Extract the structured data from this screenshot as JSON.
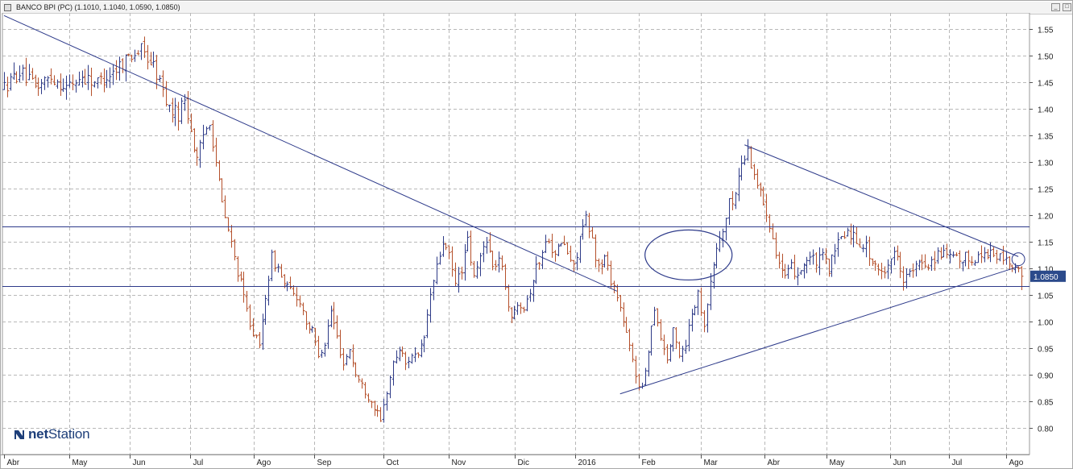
{
  "window": {
    "title": "BANCO BPI (PC) (1.1010, 1.1040, 1.0590, 1.0850)",
    "minimize_label": "_",
    "maximize_label": "□"
  },
  "logo": {
    "text_bold": "net",
    "text_rest": "Station"
  },
  "colors": {
    "up": "#2d3a87",
    "down": "#b5502b",
    "trendline": "#2d3a8a",
    "grid": "#b8b8b8",
    "price_box": "#2b4a8b"
  },
  "chart_data": {
    "type": "ohlc",
    "title": "BANCO BPI (PC)",
    "last": {
      "open": 1.101,
      "high": 1.104,
      "low": 1.059,
      "close": 1.085
    },
    "last_label": "1.0850",
    "ylim": [
      0.75,
      1.58
    ],
    "yticks": [
      "0.80",
      "0.85",
      "0.90",
      "0.95",
      "1.00",
      "1.05",
      "1.10",
      "1.15",
      "1.20",
      "1.25",
      "1.30",
      "1.35",
      "1.40",
      "1.45",
      "1.50",
      "1.55"
    ],
    "xticks": [
      "Abr",
      "May",
      "Jun",
      "Jul",
      "Ago",
      "Sep",
      "Oct",
      "Nov",
      "Dic",
      "2016",
      "Feb",
      "Mar",
      "Abr",
      "May",
      "Jun",
      "Jul",
      "Ago"
    ],
    "grid": true,
    "price_path": [
      [
        0,
        1.44
      ],
      [
        5,
        1.47
      ],
      [
        10,
        1.44
      ],
      [
        15,
        1.46
      ],
      [
        20,
        1.44
      ],
      [
        25,
        1.46
      ],
      [
        30,
        1.45
      ],
      [
        35,
        1.47
      ],
      [
        40,
        1.5
      ],
      [
        44,
        1.51
      ],
      [
        48,
        1.48
      ],
      [
        50,
        1.45
      ],
      [
        53,
        1.4
      ],
      [
        56,
        1.39
      ],
      [
        58,
        1.42
      ],
      [
        60,
        1.36
      ],
      [
        62,
        1.3
      ],
      [
        64,
        1.35
      ],
      [
        66,
        1.38
      ],
      [
        68,
        1.3
      ],
      [
        70,
        1.22
      ],
      [
        72,
        1.17
      ],
      [
        74,
        1.12
      ],
      [
        76,
        1.07
      ],
      [
        78,
        1.02
      ],
      [
        80,
        0.98
      ],
      [
        82,
        0.95
      ],
      [
        84,
        1.05
      ],
      [
        86,
        1.12
      ],
      [
        88,
        1.1
      ],
      [
        90,
        1.07
      ],
      [
        93,
        1.05
      ],
      [
        95,
        1.04
      ],
      [
        97,
        1.0
      ],
      [
        99,
        0.98
      ],
      [
        101,
        0.94
      ],
      [
        103,
        0.96
      ],
      [
        105,
        1.02
      ],
      [
        107,
        0.97
      ],
      [
        109,
        0.92
      ],
      [
        111,
        0.95
      ],
      [
        113,
        0.9
      ],
      [
        115,
        0.88
      ],
      [
        117,
        0.86
      ],
      [
        119,
        0.84
      ],
      [
        121,
        0.81
      ],
      [
        123,
        0.87
      ],
      [
        125,
        0.92
      ],
      [
        127,
        0.95
      ],
      [
        129,
        0.92
      ],
      [
        131,
        0.94
      ],
      [
        133,
        0.93
      ],
      [
        135,
        0.97
      ],
      [
        137,
        1.05
      ],
      [
        139,
        1.1
      ],
      [
        141,
        1.15
      ],
      [
        143,
        1.12
      ],
      [
        145,
        1.07
      ],
      [
        147,
        1.1
      ],
      [
        149,
        1.15
      ],
      [
        151,
        1.08
      ],
      [
        153,
        1.12
      ],
      [
        155,
        1.16
      ],
      [
        157,
        1.1
      ],
      [
        159,
        1.12
      ],
      [
        161,
        1.07
      ],
      [
        163,
        1.0
      ],
      [
        165,
        1.04
      ],
      [
        167,
        1.03
      ],
      [
        169,
        1.06
      ],
      [
        171,
        1.1
      ],
      [
        173,
        1.13
      ],
      [
        175,
        1.16
      ],
      [
        177,
        1.12
      ],
      [
        179,
        1.15
      ],
      [
        181,
        1.13
      ],
      [
        183,
        1.1
      ],
      [
        185,
        1.16
      ],
      [
        187,
        1.19
      ],
      [
        189,
        1.15
      ],
      [
        191,
        1.1
      ],
      [
        193,
        1.12
      ],
      [
        195,
        1.08
      ],
      [
        197,
        1.05
      ],
      [
        199,
        1.0
      ],
      [
        201,
        0.95
      ],
      [
        203,
        0.9
      ],
      [
        205,
        0.87
      ],
      [
        207,
        0.95
      ],
      [
        209,
        1.03
      ],
      [
        211,
        0.97
      ],
      [
        213,
        0.93
      ],
      [
        215,
        0.98
      ],
      [
        217,
        0.94
      ],
      [
        219,
        0.96
      ],
      [
        221,
        1.02
      ],
      [
        223,
        1.05
      ],
      [
        225,
        1.0
      ],
      [
        227,
        1.07
      ],
      [
        229,
        1.14
      ],
      [
        231,
        1.17
      ],
      [
        233,
        1.22
      ],
      [
        235,
        1.24
      ],
      [
        237,
        1.3
      ],
      [
        239,
        1.32
      ],
      [
        241,
        1.28
      ],
      [
        243,
        1.24
      ],
      [
        245,
        1.21
      ],
      [
        247,
        1.16
      ],
      [
        249,
        1.11
      ],
      [
        251,
        1.08
      ],
      [
        253,
        1.1
      ],
      [
        255,
        1.09
      ],
      [
        257,
        1.11
      ],
      [
        259,
        1.12
      ],
      [
        261,
        1.11
      ],
      [
        263,
        1.12
      ],
      [
        265,
        1.1
      ],
      [
        267,
        1.13
      ],
      [
        269,
        1.16
      ],
      [
        271,
        1.17
      ],
      [
        273,
        1.16
      ],
      [
        275,
        1.15
      ],
      [
        277,
        1.14
      ],
      [
        279,
        1.11
      ],
      [
        281,
        1.09
      ],
      [
        283,
        1.1
      ],
      [
        285,
        1.12
      ],
      [
        287,
        1.13
      ],
      [
        289,
        1.08
      ],
      [
        291,
        1.09
      ],
      [
        293,
        1.1
      ],
      [
        295,
        1.11
      ],
      [
        297,
        1.11
      ],
      [
        299,
        1.12
      ],
      [
        301,
        1.13
      ],
      [
        303,
        1.12
      ],
      [
        305,
        1.12
      ],
      [
        307,
        1.11
      ],
      [
        309,
        1.12
      ],
      [
        311,
        1.12
      ],
      [
        313,
        1.12
      ],
      [
        315,
        1.13
      ],
      [
        317,
        1.13
      ],
      [
        319,
        1.12
      ],
      [
        321,
        1.12
      ],
      [
        323,
        1.11
      ],
      [
        325,
        1.1
      ],
      [
        327,
        1.08
      ]
    ],
    "annotations": [
      {
        "type": "trendline",
        "points": [
          [
            0,
            1.575
          ],
          [
            197,
            1.057
          ]
        ]
      },
      {
        "type": "trendline",
        "points": [
          [
            238,
            1.332
          ],
          [
            326,
            1.122
          ]
        ]
      },
      {
        "type": "trendline",
        "points": [
          [
            198,
            0.864
          ],
          [
            326,
            1.103
          ]
        ]
      },
      {
        "type": "hline",
        "value": 1.178
      },
      {
        "type": "hline",
        "value": 1.067
      },
      {
        "type": "ellipse",
        "center": [
          220,
          1.125
        ],
        "radii": [
          14,
          0.047
        ]
      },
      {
        "type": "circle",
        "center": [
          326,
          1.117
        ],
        "radius": [
          3,
          0.012
        ]
      }
    ]
  }
}
